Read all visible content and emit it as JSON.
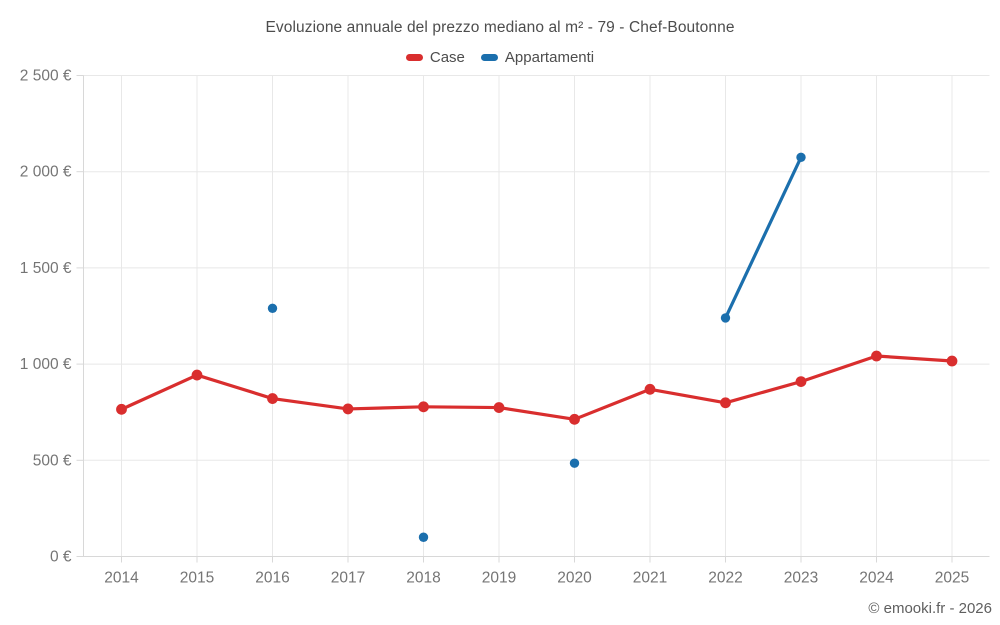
{
  "title": "Evoluzione annuale del prezzo mediano al m² - 79 - Chef-Boutonne",
  "watermark": "© emooki.fr - 2026",
  "colors": {
    "case_red": "#d92e2e",
    "appartamenti_blue": "#1b6fad",
    "grid": "#e8e8e8",
    "axis": "#d8d8d8",
    "tick_text": "#757575",
    "title_text": "#4d4d4d"
  },
  "legend": [
    {
      "label": "Case",
      "color": "#d92e2e"
    },
    {
      "label": "Appartamenti",
      "color": "#1b6fad"
    }
  ],
  "chart_data": {
    "type": "line",
    "title": "Evoluzione annuale del prezzo mediano al m² - 79 - Chef-Boutonne",
    "xlabel": "",
    "ylabel": "",
    "unit": "€",
    "categories": [
      "2014",
      "2015",
      "2016",
      "2017",
      "2018",
      "2019",
      "2020",
      "2021",
      "2022",
      "2023",
      "2024",
      "2025"
    ],
    "series": [
      {
        "name": "Case",
        "color": "#d92e2e",
        "marker_radius": 5.4,
        "values": [
          765,
          943,
          821,
          767,
          778,
          774,
          713,
          869,
          799,
          909,
          1042,
          1016
        ]
      },
      {
        "name": "Appartamenti",
        "color": "#1b6fad",
        "marker_radius": 4.7,
        "values": [
          null,
          null,
          1290,
          null,
          100,
          null,
          485,
          null,
          1240,
          2075,
          null,
          null
        ]
      }
    ],
    "ylim": [
      0,
      2500
    ],
    "yticks": [
      0,
      500,
      1000,
      1500,
      2000,
      2500
    ],
    "ytick_labels": [
      "0 €",
      "500 €",
      "1 000 €",
      "1 500 €",
      "2 000 €",
      "2 500 €"
    ],
    "grid": true,
    "legend_position": "top"
  }
}
